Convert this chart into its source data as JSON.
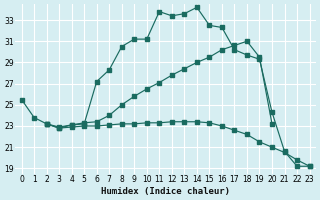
{
  "xlabel": "Humidex (Indice chaleur)",
  "bg_color": "#d6eef2",
  "grid_color": "#c8e0e8",
  "line_color": "#1a6b60",
  "xlim": [
    -0.5,
    23.5
  ],
  "ylim": [
    18.5,
    34.5
  ],
  "xticks": [
    0,
    1,
    2,
    3,
    4,
    5,
    6,
    7,
    8,
    9,
    10,
    11,
    12,
    13,
    14,
    15,
    16,
    17,
    18,
    19,
    20,
    21,
    22,
    23
  ],
  "yticks": [
    19,
    21,
    23,
    25,
    27,
    29,
    31,
    33
  ],
  "line1_x": [
    0,
    1,
    2,
    3,
    4,
    5,
    6,
    7,
    8,
    9,
    10,
    11,
    12,
    13,
    14,
    15,
    16,
    17,
    18,
    19,
    20,
    21,
    22,
    23
  ],
  "line1_y": [
    25.5,
    23.8,
    23.2,
    22.8,
    23.1,
    23.2,
    27.2,
    28.3,
    30.5,
    31.2,
    31.2,
    33.8,
    33.4,
    33.6,
    34.2,
    32.5,
    32.3,
    30.2,
    29.7,
    29.3,
    24.3,
    20.6,
    19.2,
    19.2
  ],
  "line2_x": [
    2,
    3,
    4,
    5,
    6,
    7,
    8,
    9,
    10,
    11,
    12,
    13,
    14,
    15,
    16,
    17,
    18,
    19,
    20
  ],
  "line2_y": [
    23.2,
    22.9,
    23.1,
    23.3,
    23.4,
    24.0,
    25.0,
    25.8,
    26.5,
    27.1,
    27.8,
    28.4,
    29.0,
    29.5,
    30.2,
    30.6,
    31.0,
    29.5,
    23.2
  ],
  "line3_x": [
    2,
    3,
    4,
    5,
    6,
    7,
    8,
    9,
    10,
    11,
    12,
    13,
    14,
    15,
    16,
    17,
    18,
    19,
    20,
    21,
    22,
    23
  ],
  "line3_y": [
    23.2,
    22.8,
    22.9,
    23.0,
    23.0,
    23.1,
    23.2,
    23.2,
    23.3,
    23.3,
    23.4,
    23.4,
    23.4,
    23.3,
    23.0,
    22.6,
    22.2,
    21.5,
    21.0,
    20.5,
    19.8,
    19.2
  ]
}
